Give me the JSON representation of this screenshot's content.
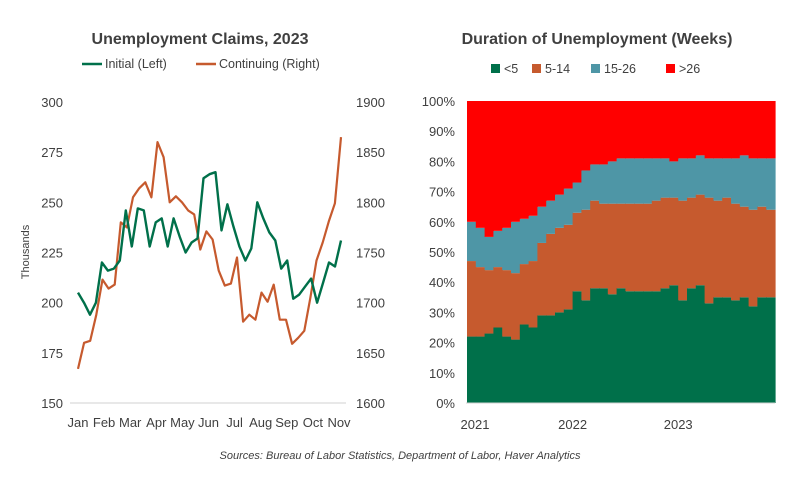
{
  "chart_data": [
    {
      "type": "line",
      "title": "Unemployment Claims, 2023",
      "ylabel": "Thousands",
      "ylabel_right": "",
      "xlabel": "",
      "x_tick_labels": [
        "Jan",
        "Feb",
        "Mar",
        "Apr",
        "May",
        "Jun",
        "Jul",
        "Aug",
        "Sep",
        "Oct",
        "Nov"
      ],
      "ylim": [
        150,
        300
      ],
      "y_ticks": [
        150,
        175,
        200,
        225,
        250,
        275,
        300
      ],
      "ylim_right": [
        1600,
        1900
      ],
      "y_ticks_right": [
        1600,
        1650,
        1700,
        1750,
        1800,
        1850,
        1900
      ],
      "grid": false,
      "legend_position": "top",
      "series": [
        {
          "name": "Initial (Left)",
          "axis": "left",
          "color": "#00704A",
          "values": [
            205,
            200,
            194,
            200,
            220,
            216,
            217,
            221,
            246,
            228,
            247,
            246,
            228,
            240,
            242,
            228,
            242,
            233,
            225,
            230,
            232,
            262,
            264,
            265,
            236,
            249,
            238,
            228,
            221,
            227,
            250,
            242,
            235,
            231,
            217,
            221,
            202,
            204,
            208,
            212,
            200,
            210,
            220,
            218,
            231
          ]
        },
        {
          "name": "Continuing (Right)",
          "axis": "right",
          "color": "#C65A2E",
          "values": [
            1634,
            1660,
            1662,
            1688,
            1723,
            1714,
            1718,
            1780,
            1775,
            1805,
            1814,
            1820,
            1805,
            1860,
            1845,
            1800,
            1806,
            1800,
            1792,
            1788,
            1753,
            1771,
            1763,
            1732,
            1717,
            1719,
            1745,
            1681,
            1688,
            1683,
            1710,
            1701,
            1718,
            1683,
            1683,
            1659,
            1665,
            1672,
            1705,
            1742,
            1760,
            1781,
            1799,
            1865
          ]
        }
      ]
    },
    {
      "type": "area",
      "stacked": "100%",
      "title": "Duration of Unemployment (Weeks)",
      "xlabel": "",
      "ylabel": "",
      "x_tick_labels": [
        "2021",
        "2022",
        "2023"
      ],
      "ylim": [
        0,
        100
      ],
      "y_ticks": [
        "0%",
        "10%",
        "20%",
        "30%",
        "40%",
        "50%",
        "60%",
        "70%",
        "80%",
        "90%",
        "100%"
      ],
      "grid": false,
      "legend_position": "top",
      "series_names": [
        "<5",
        "5-14",
        "15-26",
        ">26"
      ],
      "colors": [
        "#00704A",
        "#C65A2E",
        "#4E96A6",
        "#FF0000"
      ],
      "months": [
        "2021-01",
        "2021-02",
        "2021-03",
        "2021-04",
        "2021-05",
        "2021-06",
        "2021-07",
        "2021-08",
        "2021-09",
        "2021-10",
        "2021-11",
        "2021-12",
        "2022-01",
        "2022-02",
        "2022-03",
        "2022-04",
        "2022-05",
        "2022-06",
        "2022-07",
        "2022-08",
        "2022-09",
        "2022-10",
        "2022-11",
        "2022-12",
        "2023-01",
        "2023-02",
        "2023-03",
        "2023-04",
        "2023-05",
        "2023-06",
        "2023-07",
        "2023-08",
        "2023-09",
        "2023-10",
        "2023-11"
      ],
      "values_lt5": [
        22,
        22,
        23,
        25,
        22,
        21,
        26,
        25,
        29,
        29,
        30,
        31,
        37,
        34,
        38,
        38,
        36,
        38,
        37,
        37,
        37,
        37,
        38,
        39,
        34,
        38,
        39,
        33,
        35,
        35,
        34,
        35,
        32,
        35,
        35
      ],
      "values_5_14": [
        25,
        23,
        21,
        20,
        22,
        22,
        20,
        22,
        24,
        27,
        28,
        28,
        26,
        30,
        29,
        28,
        30,
        28,
        29,
        29,
        29,
        30,
        30,
        29,
        33,
        30,
        30,
        35,
        32,
        33,
        32,
        30,
        32,
        30,
        29
      ],
      "values_15_26": [
        13,
        13,
        11,
        12,
        14,
        17,
        15,
        15,
        12,
        11,
        11,
        12,
        10,
        13,
        12,
        13,
        14,
        15,
        15,
        15,
        15,
        14,
        13,
        12,
        14,
        13,
        13,
        13,
        14,
        13,
        15,
        17,
        17,
        16,
        17
      ],
      "values_gt26": [
        40,
        42,
        45,
        43,
        42,
        40,
        39,
        38,
        35,
        33,
        31,
        29,
        27,
        23,
        21,
        21,
        20,
        19,
        19,
        19,
        19,
        19,
        19,
        20,
        19,
        19,
        18,
        19,
        19,
        19,
        19,
        18,
        19,
        19,
        19
      ]
    }
  ],
  "source_note": "Sources: Bureau of Labor Statistics, Department of Labor, Haver Analytics"
}
